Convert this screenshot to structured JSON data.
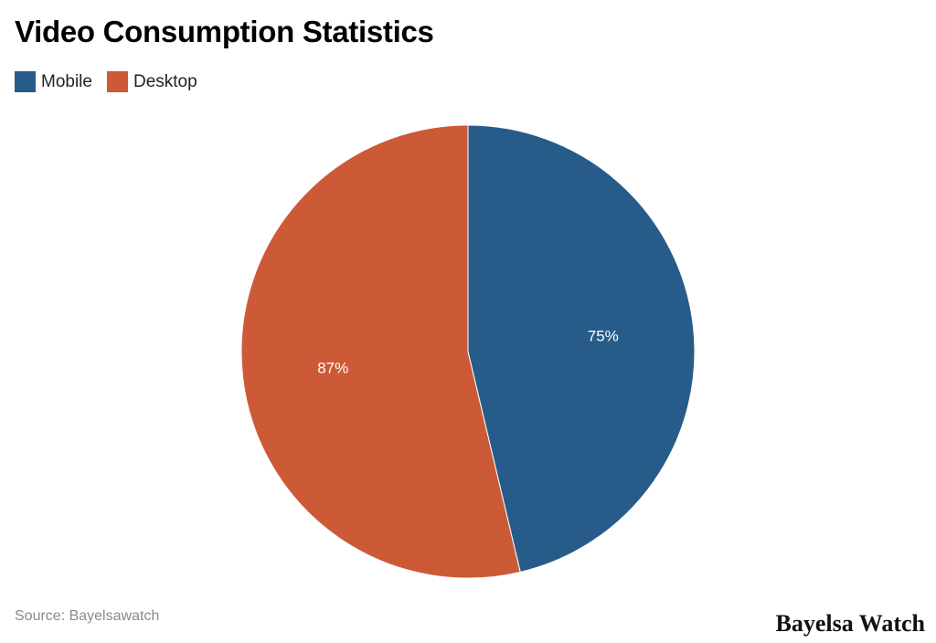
{
  "title": "Video Consumption Statistics",
  "legend": [
    {
      "label": "Mobile",
      "color": "#275c8a"
    },
    {
      "label": "Desktop",
      "color": "#cd5a37"
    }
  ],
  "footer": {
    "source": "Source: Bayelsawatch",
    "brand": "Bayelsa Watch"
  },
  "chart_data": {
    "type": "pie",
    "title": "Video Consumption Statistics",
    "categories": [
      "Mobile",
      "Desktop"
    ],
    "values": [
      75,
      87
    ],
    "labels": [
      "75%",
      "87%"
    ],
    "colors": [
      "#275c8a",
      "#cd5a37"
    ],
    "legend_position": "top-left",
    "start_angle": "12 o'clock, clockwise"
  }
}
